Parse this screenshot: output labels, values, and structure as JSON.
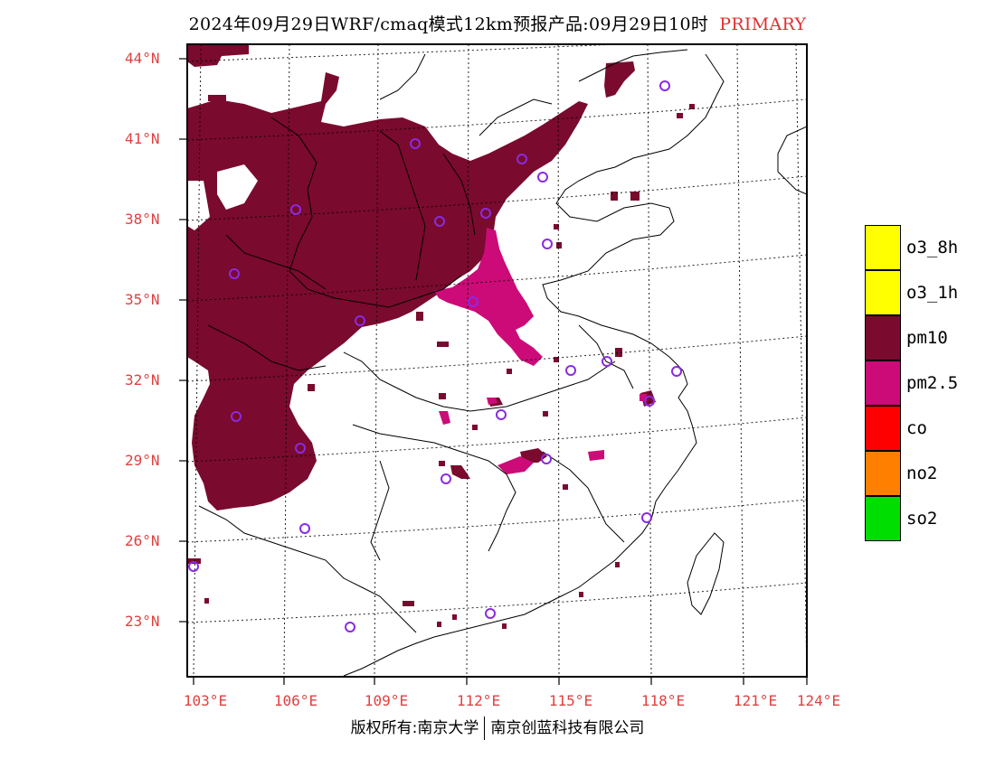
{
  "title": {
    "main": "2024年09月29日WRF/cmaq模式12km预报产品:09月29日10时",
    "tag": "PRIMARY"
  },
  "lat_labels": [
    "44°N",
    "41°N",
    "38°N",
    "35°N",
    "32°N",
    "29°N",
    "26°N",
    "23°N"
  ],
  "lon_labels": [
    "103°E",
    "106°E",
    "109°E",
    "112°E",
    "115°E",
    "118°E",
    "121°E",
    "124°E"
  ],
  "legend": [
    {
      "label": "o3_8h",
      "color": "#ffff00"
    },
    {
      "label": "o3_1h",
      "color": "#ffff00"
    },
    {
      "label": "pm10",
      "color": "#7a0a2e"
    },
    {
      "label": "pm2.5",
      "color": "#cc0a78"
    },
    {
      "label": "co",
      "color": "#ff0000"
    },
    {
      "label": "no2",
      "color": "#ff7f00"
    },
    {
      "label": "so2",
      "color": "#00dd00"
    }
  ],
  "footer": {
    "left": "版权所有:南京大学",
    "right": "南京创蓝科技有限公司"
  },
  "colors": {
    "pm10": "#7a0a2e",
    "pm25": "#cc0a78",
    "station": "#8a2be2",
    "axis_label": "#e04040"
  }
}
